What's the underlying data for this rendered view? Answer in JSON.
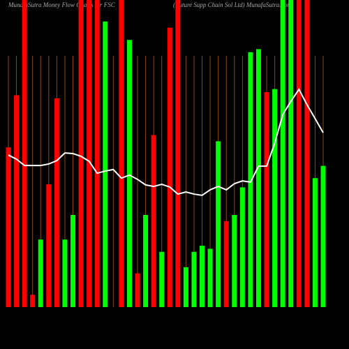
{
  "chart_data": {
    "type": "bar",
    "title": "MunafaSutra  Money Flow  Charts for FSC",
    "subtitle": "(Future   Supp Chain  Sol Ltd) MunafaSutra.com",
    "categories": [
      null,
      null,
      null,
      null,
      null,
      null,
      null,
      null,
      null,
      null,
      null,
      null,
      null,
      null,
      null,
      null,
      null,
      null,
      null,
      null,
      null,
      null,
      null,
      null,
      null,
      null,
      null,
      null,
      null,
      null,
      null,
      null,
      null,
      null,
      null,
      null,
      null,
      null,
      null,
      null
    ],
    "values": [
      52,
      69,
      100,
      4,
      22,
      40,
      68,
      22,
      30,
      100,
      100,
      100,
      93,
      0,
      100,
      87,
      11,
      30,
      56,
      18,
      91,
      100,
      13,
      18,
      20,
      19,
      54,
      28,
      30,
      39,
      83,
      84,
      70,
      71,
      100,
      100,
      100,
      100,
      42,
      46
    ],
    "colors": [
      "#ff0000",
      "#ff0000",
      "#ff0000",
      "#ff0000",
      "#00ff00",
      "#ff0000",
      "#ff0000",
      "#00ff00",
      "#00ff00",
      "#ff0000",
      "#ff0000",
      "#ff0000",
      "#00ff00",
      "#ff0000",
      "#ff0000",
      "#00ff00",
      "#ff0000",
      "#00ff00",
      "#ff0000",
      "#00ff00",
      "#ff0000",
      "#ff0000",
      "#00ff00",
      "#00ff00",
      "#00ff00",
      "#00ff00",
      "#00ff00",
      "#ff0000",
      "#00ff00",
      "#00ff00",
      "#00ff00",
      "#00ff00",
      "#ff0000",
      "#00ff00",
      "#00ff00",
      "#00ff00",
      "#ff0000",
      "#ff0000",
      "#00ff00",
      "#00ff00"
    ],
    "line_values": [
      49.5,
      48.2,
      46.1,
      46.1,
      46.1,
      46.6,
      47.7,
      50.2,
      50,
      49.1,
      47.5,
      43.6,
      44.3,
      44.8,
      42,
      43,
      41.6,
      39.8,
      39.3,
      40,
      39.1,
      36.8,
      37.5,
      36.8,
      36.4,
      38.2,
      39.3,
      38.2,
      40.2,
      41.1,
      40.7,
      45.9,
      45.9,
      53.4,
      62.7,
      67,
      70.9,
      65.9,
      61.4,
      56.8
    ],
    "line_color": "#ffffff",
    "grid_color": "#8b4a10",
    "ylim": [
      0,
      100
    ]
  }
}
